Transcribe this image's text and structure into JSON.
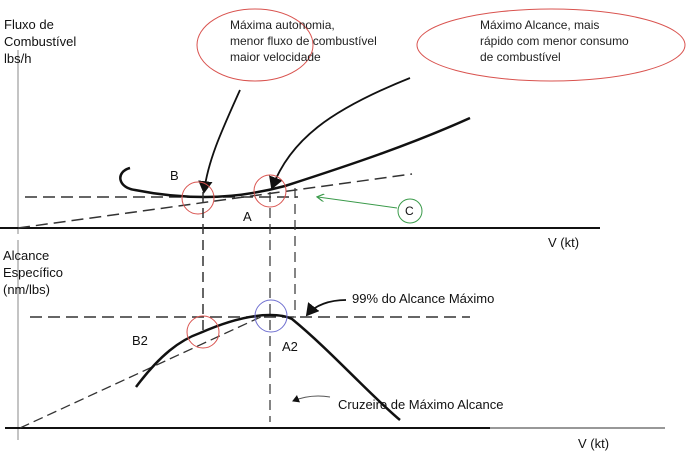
{
  "top_chart": {
    "ylabel_lines": [
      "Fluxo de",
      "Combustível",
      "lbs/h"
    ],
    "xlabel": "V (kt)",
    "point_b": "B",
    "point_a": "A",
    "point_c": "C",
    "callout_endurance_lines": [
      "Máxima autonomia,",
      "menor fluxo de combustível",
      "maior velocidade"
    ],
    "callout_range_lines": [
      "Máximo Alcance, mais",
      "rápido com menor consumo",
      "de combustível"
    ]
  },
  "bottom_chart": {
    "ylabel_lines": [
      "Alcance",
      "Específico",
      "(nm/lbs)"
    ],
    "xlabel": "V (kt)",
    "point_b2": "B2",
    "point_a2": "A2",
    "note_99": "99% do Alcance Máximo",
    "note_cruise": "Cruzeiro de Máximo Alcance"
  },
  "colors": {
    "red_marker": "#d9534f",
    "blue_marker": "#6f6fd0",
    "green_marker": "#3a9a4a"
  }
}
